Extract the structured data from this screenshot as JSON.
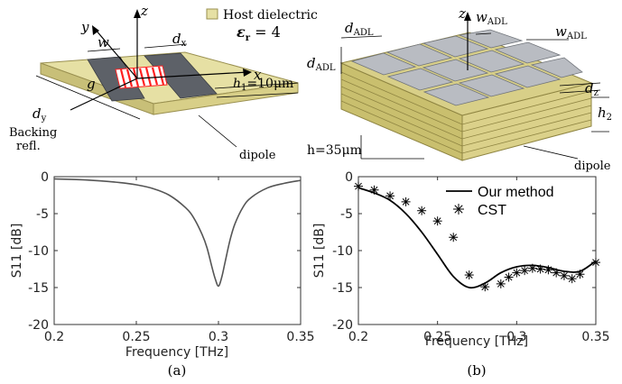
{
  "figure_a": {
    "host_label": "Host dielectric",
    "eps_label": "ε",
    "eps_sub": "r",
    "eps_value": " = 4",
    "h1_label": "h",
    "h1_sub": "1",
    "h1_value": "=10μm",
    "dipole_label": "dipole",
    "backing_line1": "Backing",
    "backing_line2": "refl.",
    "axis_z": "z",
    "axis_y": "y",
    "axis_x": "x",
    "w_label": "w",
    "dx_label": "d",
    "dx_sub": "x",
    "dy_label": "d",
    "dy_sub": "y",
    "g_label": "g"
  },
  "figure_b": {
    "d_adl_label": "d",
    "d_adl_sub": "ADL",
    "w_adl_label": "w",
    "w_adl_sub": "ADL",
    "axis_z": "z",
    "dz_label": "d",
    "dz_sub": "z",
    "h2_label": "h",
    "h2_sub": "2",
    "h_value": "h=35μm",
    "dipole_label": "dipole"
  },
  "captions": {
    "a": "(a)",
    "b": "(b)"
  },
  "colors": {
    "host": "#e6e0a4",
    "host_edge": "#b9ad5f",
    "metal": "#b9bcc2",
    "dark_metal": "#55585e",
    "gap": "#ff2020",
    "curve": "#555555",
    "curve_b": "#000000"
  },
  "chart_data": [
    {
      "type": "line",
      "xlabel": "Frequency [THz]",
      "ylabel": "S11 [dB]",
      "xlim": [
        0.2,
        0.35
      ],
      "ylim": [
        -20,
        0
      ],
      "xticks": [
        "0.2",
        "0.25",
        "0.3",
        "0.35"
      ],
      "yticks": [
        "0",
        "-5",
        "-10",
        "-15",
        "-20"
      ],
      "grid": false,
      "series": [
        {
          "x": [
            0.2,
            0.22,
            0.24,
            0.25,
            0.26,
            0.27,
            0.28,
            0.285,
            0.29,
            0.293,
            0.296,
            0.298,
            0.3,
            0.302,
            0.304,
            0.307,
            0.31,
            0.315,
            0.32,
            0.33,
            0.34,
            0.35
          ],
          "y": [
            -0.3,
            -0.45,
            -0.8,
            -1.1,
            -1.6,
            -2.5,
            -4.2,
            -5.6,
            -7.8,
            -9.6,
            -12.2,
            -13.8,
            -14.8,
            -13.6,
            -11.6,
            -8.6,
            -6.4,
            -4.1,
            -2.8,
            -1.5,
            -0.9,
            -0.5
          ]
        }
      ]
    },
    {
      "type": "line",
      "xlabel": "Frequency [THz]",
      "ylabel": "S11 [dB]",
      "xlim": [
        0.2,
        0.35
      ],
      "ylim": [
        -20,
        0
      ],
      "xticks": [
        "0.2",
        "0.25",
        "0.3",
        "0.35"
      ],
      "yticks": [
        "0",
        "-5",
        "-10",
        "-15",
        "-20"
      ],
      "legend": "top-right",
      "series": [
        {
          "name": "Our method",
          "style": "line",
          "x": [
            0.2,
            0.21,
            0.22,
            0.23,
            0.24,
            0.25,
            0.26,
            0.27,
            0.28,
            0.29,
            0.3,
            0.31,
            0.32,
            0.33,
            0.34,
            0.35
          ],
          "y": [
            -1.5,
            -2.2,
            -3.2,
            -5.0,
            -7.5,
            -10.5,
            -13.5,
            -15.0,
            -14.4,
            -13.0,
            -12.2,
            -12.0,
            -12.3,
            -12.8,
            -12.8,
            -11.4
          ]
        },
        {
          "name": "CST",
          "style": "markers",
          "x": [
            0.2,
            0.21,
            0.22,
            0.23,
            0.24,
            0.25,
            0.26,
            0.27,
            0.28,
            0.29,
            0.295,
            0.3,
            0.305,
            0.31,
            0.315,
            0.32,
            0.325,
            0.33,
            0.335,
            0.34,
            0.35
          ],
          "y": [
            -1.3,
            -1.8,
            -2.6,
            -3.4,
            -4.6,
            -6.0,
            -8.2,
            -13.3,
            -14.9,
            -14.5,
            -13.6,
            -13.0,
            -12.7,
            -12.4,
            -12.5,
            -12.6,
            -13.0,
            -13.4,
            -13.8,
            -13.2,
            -11.6
          ]
        }
      ]
    }
  ]
}
